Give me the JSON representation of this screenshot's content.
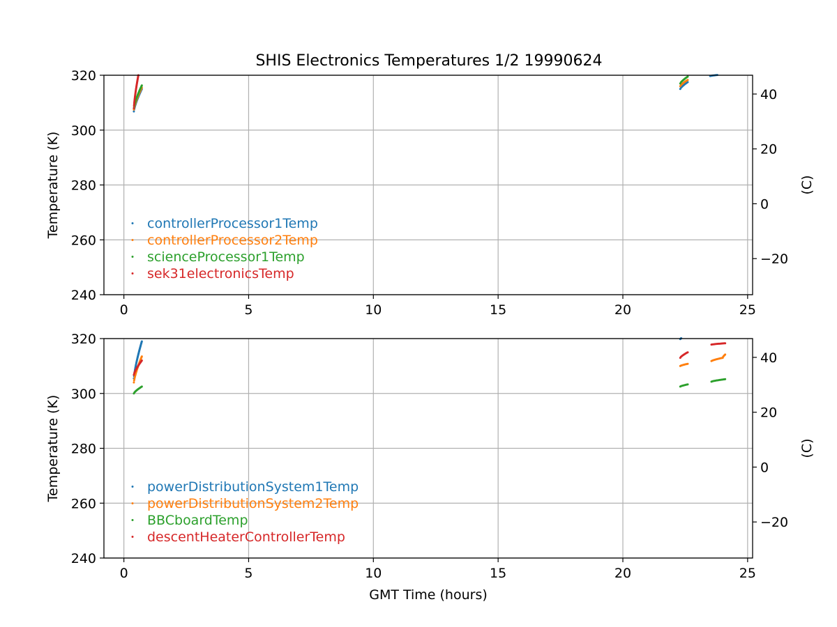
{
  "title": "SHIS Electronics Temperatures 1/2 19990624",
  "colors": {
    "blue": "#1f77b4",
    "orange": "#ff7f0e",
    "green": "#2ca02c",
    "red": "#d62728",
    "grid": "#b0b0b0"
  },
  "chart_data": [
    {
      "type": "scatter",
      "xlabel": "",
      "ylabel": "Temperature (K)",
      "ylabel_right": "(C)",
      "xlim": [
        -0.8,
        25.2
      ],
      "ylim": [
        240,
        320
      ],
      "xticks": [
        0,
        5,
        10,
        15,
        20,
        25
      ],
      "yticks": [
        240,
        260,
        280,
        300,
        320
      ],
      "yticks_right": [
        -20,
        0,
        20,
        40
      ],
      "grid": true,
      "legend_position": "lower-left",
      "series": [
        {
          "name": "controllerProcessor1Temp",
          "color": "#1f77b4",
          "segments": [
            {
              "x0": 0.4,
              "x1": 0.72,
              "y0": 306.8,
              "y1": 315.0
            },
            {
              "x0": 22.3,
              "x1": 22.6,
              "y0": 315.0,
              "y1": 317.5
            },
            {
              "x0": 23.5,
              "x1": 24.0,
              "y0": 319.7,
              "y1": 320.3
            }
          ]
        },
        {
          "name": "controllerProcessor2Temp",
          "color": "#ff7f0e",
          "segments": [
            {
              "x0": 0.4,
              "x1": 0.72,
              "y0": 307.5,
              "y1": 315.5
            },
            {
              "x0": 22.3,
              "x1": 22.6,
              "y0": 316.0,
              "y1": 318.3
            }
          ]
        },
        {
          "name": "scienceProcessor1Temp",
          "color": "#2ca02c",
          "segments": [
            {
              "x0": 0.4,
              "x1": 0.72,
              "y0": 308.0,
              "y1": 316.3
            },
            {
              "x0": 22.3,
              "x1": 22.6,
              "y0": 317.0,
              "y1": 319.5
            }
          ]
        },
        {
          "name": "sek31electronicsTemp",
          "color": "#d62728",
          "segments": [
            {
              "x0": 0.4,
              "x1": 0.6,
              "y0": 308.0,
              "y1": 321.0
            }
          ]
        }
      ]
    },
    {
      "type": "scatter",
      "xlabel": "GMT Time (hours)",
      "ylabel": "Temperature (K)",
      "ylabel_right": "(C)",
      "xlim": [
        -0.8,
        25.2
      ],
      "ylim": [
        240,
        320
      ],
      "xticks": [
        0,
        5,
        10,
        15,
        20,
        25
      ],
      "yticks": [
        240,
        260,
        280,
        300,
        320
      ],
      "yticks_right": [
        -20,
        0,
        20,
        40
      ],
      "grid": true,
      "legend_position": "lower-left",
      "series": [
        {
          "name": "powerDistributionSystem1Temp",
          "color": "#1f77b4",
          "segments": [
            {
              "x0": 0.4,
              "x1": 0.72,
              "y0": 305.5,
              "y1": 319.0
            },
            {
              "x0": 22.3,
              "x1": 22.35,
              "y0": 319.8,
              "y1": 320.2
            }
          ]
        },
        {
          "name": "powerDistributionSystem2Temp",
          "color": "#ff7f0e",
          "segments": [
            {
              "x0": 0.4,
              "x1": 0.72,
              "y0": 304.0,
              "y1": 313.5
            },
            {
              "x0": 22.3,
              "x1": 22.6,
              "y0": 310.0,
              "y1": 310.8
            },
            {
              "x0": 23.55,
              "x1": 24.0,
              "y0": 311.8,
              "y1": 313.0
            },
            {
              "x0": 24.0,
              "x1": 24.1,
              "y0": 313.0,
              "y1": 314.2
            }
          ]
        },
        {
          "name": "BBCboardTemp",
          "color": "#2ca02c",
          "segments": [
            {
              "x0": 0.4,
              "x1": 0.72,
              "y0": 300.0,
              "y1": 302.5
            },
            {
              "x0": 22.3,
              "x1": 22.6,
              "y0": 302.5,
              "y1": 303.3
            },
            {
              "x0": 23.55,
              "x1": 24.1,
              "y0": 304.3,
              "y1": 305.2
            }
          ]
        },
        {
          "name": "descentHeaterControllerTemp",
          "color": "#d62728",
          "segments": [
            {
              "x0": 0.4,
              "x1": 0.72,
              "y0": 306.8,
              "y1": 312.0
            },
            {
              "x0": 22.3,
              "x1": 22.6,
              "y0": 313.0,
              "y1": 315.0
            },
            {
              "x0": 23.55,
              "x1": 24.1,
              "y0": 317.8,
              "y1": 318.3
            }
          ]
        }
      ]
    }
  ]
}
